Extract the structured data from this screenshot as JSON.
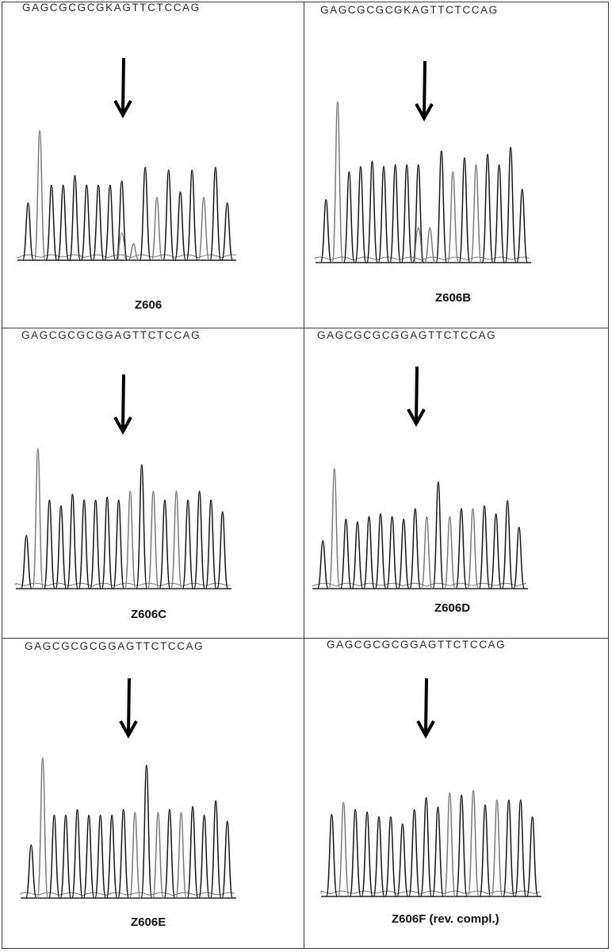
{
  "panels": [
    {
      "sequence": "GAGCGCGCGKAGTTCTCCAG",
      "label": "Z606",
      "gray_peaks": [
        2,
        10,
        12,
        16
      ],
      "small_peaks": [
        9
      ]
    },
    {
      "sequence": "GAGCGCGCGKAGTTCTCCAG",
      "label": "Z606B",
      "gray_peaks": [
        2,
        10,
        12,
        14
      ],
      "small_peaks": [
        9
      ]
    },
    {
      "sequence": "GAGCGCGCGGAGTTCTCCAG",
      "label": "Z606C",
      "gray_peaks": [
        2,
        10,
        12,
        14
      ],
      "small_peaks": []
    },
    {
      "sequence": "GAGCGCGCGGAGTTCTCCAG",
      "label": "Z606D",
      "gray_peaks": [
        2,
        10,
        12,
        14
      ],
      "small_peaks": []
    },
    {
      "sequence": "GAGCGCGCGGAGTTCTCCAG",
      "label": "Z606E",
      "gray_peaks": [
        2,
        10,
        12,
        14
      ],
      "small_peaks": []
    },
    {
      "sequence": "GAGCGCGCGGAGTTCTCCAG",
      "label": "Z606F (rev. compl.)",
      "gray_peaks": [
        2,
        11,
        13,
        15
      ],
      "small_peaks": []
    }
  ],
  "colors": {
    "border": "#3a3a3a",
    "trace_dark": "#151515",
    "trace_gray": "#7a7a7a",
    "arrow": "#000000"
  }
}
